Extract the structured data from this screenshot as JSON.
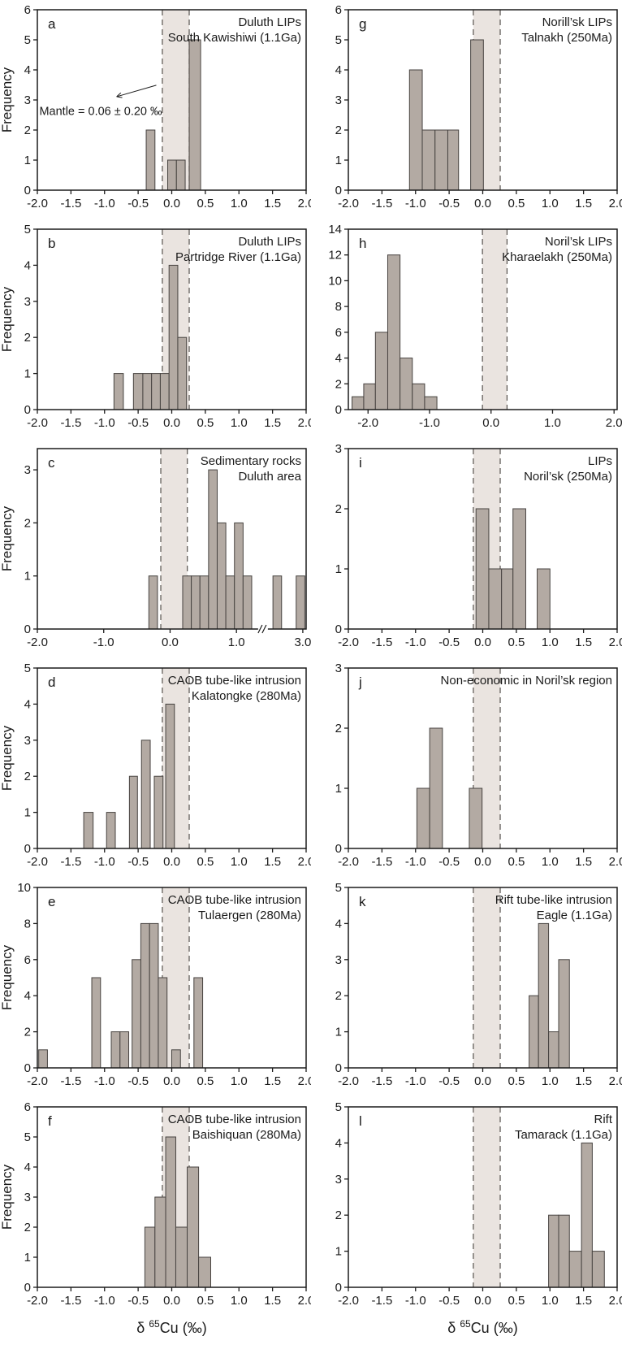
{
  "figure": {
    "ylabel": "Frequency",
    "xlabel_prefix": "δ ",
    "xlabel_sup": "65",
    "xlabel_suffix": "Cu (‰)",
    "mantle_band": [
      -0.14,
      0.26
    ],
    "colors": {
      "bar_fill": "#b3aaa3",
      "bar_stroke": "#474340",
      "band_fill": "#eae4e0",
      "dash_color": "#56514d",
      "axis_color": "#1c1c1c",
      "text_color": "#1a1a1a"
    }
  },
  "chart_data": [
    {
      "id": "a",
      "type": "bar",
      "letter": "a",
      "title_lines": [
        "Duluth LIPs",
        "South Kawishiwi (1.1Ga)"
      ],
      "xlim": [
        -2,
        2
      ],
      "xtick_vals": [
        -2,
        -1.5,
        -1,
        -0.5,
        0,
        0.5,
        1,
        1.5,
        2
      ],
      "xtick_labels": [
        "-2.0",
        "-1.5",
        "-1.0",
        "-0.5",
        "0.0",
        "0.5",
        "1.0",
        "1.5",
        "2.0"
      ],
      "ymax": 6,
      "yticks": [
        0,
        1,
        2,
        3,
        4,
        5,
        6
      ],
      "bars": [
        [
          -0.38,
          -0.25,
          2
        ],
        [
          -0.06,
          0.07,
          1
        ],
        [
          0.07,
          0.2,
          1
        ],
        [
          0.26,
          0.43,
          5
        ]
      ],
      "show_ylabel": true,
      "show_xlabel": false,
      "annotation": {
        "text": "Mantle = 0.06 ± 0.20 ‰",
        "text_x": -1.97,
        "text_y": 2.5,
        "arrow_from": [
          -0.23,
          3.49
        ],
        "arrow_to": [
          -0.82,
          3.11
        ]
      }
    },
    {
      "id": "b",
      "type": "bar",
      "letter": "b",
      "title_lines": [
        "Duluth LIPs",
        "Partridge River (1.1Ga)"
      ],
      "xlim": [
        -2,
        2
      ],
      "xtick_vals": [
        -2,
        -1.5,
        -1,
        -0.5,
        0,
        0.5,
        1,
        1.5,
        2
      ],
      "xtick_labels": [
        "-2.0",
        "-1.5",
        "-1.0",
        "-0.5",
        "0.0",
        "0.5",
        "1.0",
        "1.5",
        "2.0"
      ],
      "ymax": 5,
      "yticks": [
        0,
        1,
        2,
        3,
        4,
        5
      ],
      "bars": [
        [
          -0.86,
          -0.72,
          1
        ],
        [
          -0.57,
          -0.43,
          1
        ],
        [
          -0.43,
          -0.3,
          1
        ],
        [
          -0.3,
          -0.17,
          1
        ],
        [
          -0.17,
          -0.04,
          1
        ],
        [
          -0.04,
          0.09,
          4
        ],
        [
          0.09,
          0.22,
          2
        ]
      ],
      "show_ylabel": true,
      "show_xlabel": false
    },
    {
      "id": "c",
      "type": "bar",
      "letter": "c",
      "title_lines": [
        "Sedimentary rocks",
        "Duluth area"
      ],
      "xlim": [
        -2,
        3.05
      ],
      "xbreak": {
        "break_start": 1.35,
        "break_end": 2.45,
        "gap": 0.1
      },
      "xtick_vals": [
        -2,
        -1,
        0,
        1,
        3
      ],
      "xtick_labels": [
        "-2.0",
        "-1.0",
        "0.0",
        "1.0",
        "3.0"
      ],
      "ymax": 3.4,
      "yticks": [
        0,
        1,
        2,
        3
      ],
      "bars": [
        [
          -0.32,
          -0.19,
          1
        ],
        [
          0.19,
          0.32,
          1
        ],
        [
          0.32,
          0.45,
          1
        ],
        [
          0.45,
          0.58,
          1
        ],
        [
          0.58,
          0.71,
          3
        ],
        [
          0.71,
          0.84,
          2
        ],
        [
          0.84,
          0.97,
          1
        ],
        [
          0.97,
          1.1,
          2
        ],
        [
          1.1,
          1.23,
          1
        ],
        [
          2.55,
          2.68,
          1
        ],
        [
          2.9,
          3.03,
          1
        ]
      ],
      "show_ylabel": true,
      "show_xlabel": false
    },
    {
      "id": "d",
      "type": "bar",
      "letter": "d",
      "title_lines": [
        "CAOB tube-like intrusion",
        "Kalatongke (280Ma)"
      ],
      "xlim": [
        -2,
        2
      ],
      "xtick_vals": [
        -2,
        -1.5,
        -1,
        -0.5,
        0,
        0.5,
        1,
        1.5,
        2
      ],
      "xtick_labels": [
        "-2.0",
        "-1.5",
        "-1.0",
        "-0.5",
        "0.0",
        "0.5",
        "1.0",
        "1.5",
        "2.0"
      ],
      "ymax": 5,
      "yticks": [
        0,
        1,
        2,
        3,
        4,
        5
      ],
      "bars": [
        [
          -1.31,
          -1.17,
          1
        ],
        [
          -0.97,
          -0.84,
          1
        ],
        [
          -0.63,
          -0.51,
          2
        ],
        [
          -0.45,
          -0.32,
          3
        ],
        [
          -0.26,
          -0.13,
          2
        ],
        [
          -0.09,
          0.04,
          4
        ]
      ],
      "show_ylabel": true,
      "show_xlabel": false
    },
    {
      "id": "e",
      "type": "bar",
      "letter": "e",
      "title_lines": [
        "CAOB tube-like intrusion",
        "Tulaergen (280Ma)"
      ],
      "xlim": [
        -2,
        2
      ],
      "xtick_vals": [
        -2,
        -1.5,
        -1,
        -0.5,
        0,
        0.5,
        1,
        1.5,
        2
      ],
      "xtick_labels": [
        "-2.0",
        "-1.5",
        "-1.0",
        "-0.5",
        "0.0",
        "0.5",
        "1.0",
        "1.5",
        "2.0"
      ],
      "ymax": 10,
      "yticks": [
        0,
        2,
        4,
        6,
        8,
        10
      ],
      "bars": [
        [
          -1.98,
          -1.85,
          1
        ],
        [
          -1.19,
          -1.06,
          5
        ],
        [
          -0.9,
          -0.77,
          2
        ],
        [
          -0.77,
          -0.64,
          2
        ],
        [
          -0.59,
          -0.46,
          6
        ],
        [
          -0.46,
          -0.33,
          8
        ],
        [
          -0.33,
          -0.2,
          8
        ],
        [
          -0.2,
          -0.07,
          5
        ],
        [
          0.0,
          0.13,
          1
        ],
        [
          0.33,
          0.46,
          5
        ]
      ],
      "show_ylabel": true,
      "show_xlabel": false
    },
    {
      "id": "f",
      "type": "bar",
      "letter": "f",
      "title_lines": [
        "CAOB tube-like intrusion",
        "Baishiquan (280Ma)"
      ],
      "xlim": [
        -2,
        2
      ],
      "xtick_vals": [
        -2,
        -1.5,
        -1,
        -0.5,
        0,
        0.5,
        1,
        1.5,
        2
      ],
      "xtick_labels": [
        "-2.0",
        "-1.5",
        "-1.0",
        "-0.5",
        "0.0",
        "0.5",
        "1.0",
        "1.5",
        "2.0"
      ],
      "ymax": 6,
      "yticks": [
        0,
        1,
        2,
        3,
        4,
        5,
        6
      ],
      "bars": [
        [
          -0.4,
          -0.25,
          2
        ],
        [
          -0.25,
          -0.09,
          3
        ],
        [
          -0.09,
          0.06,
          5
        ],
        [
          0.06,
          0.23,
          2
        ],
        [
          0.23,
          0.4,
          4
        ],
        [
          0.4,
          0.58,
          1
        ]
      ],
      "show_ylabel": true,
      "show_xlabel": true
    },
    {
      "id": "g",
      "type": "bar",
      "letter": "g",
      "title_lines": [
        "Norill’sk LIPs",
        "Talnakh (250Ma)"
      ],
      "xlim": [
        -2,
        2
      ],
      "xtick_vals": [
        -2,
        -1.5,
        -1,
        -0.5,
        0,
        0.5,
        1,
        1.5,
        2
      ],
      "xtick_labels": [
        "-2.0",
        "-1.5",
        "-1.0",
        "-0.5",
        "0.0",
        "0.5",
        "1.0",
        "1.5",
        "2.0"
      ],
      "ymax": 6,
      "yticks": [
        0,
        1,
        2,
        3,
        4,
        5,
        6
      ],
      "bars": [
        [
          -1.09,
          -0.9,
          4
        ],
        [
          -0.9,
          -0.71,
          2
        ],
        [
          -0.71,
          -0.52,
          2
        ],
        [
          -0.52,
          -0.36,
          2
        ],
        [
          -0.18,
          0.01,
          5
        ]
      ],
      "show_ylabel": false,
      "show_xlabel": false
    },
    {
      "id": "h",
      "type": "bar",
      "letter": "h",
      "title_lines": [
        "Noril’sk LIPs",
        "Kharaelakh (250Ma)"
      ],
      "xlim": [
        -2.32,
        2.05
      ],
      "xtick_vals": [
        -2,
        -1,
        0,
        1,
        2
      ],
      "xtick_labels": [
        "-2.0",
        "-1.0",
        "0.0",
        "1.0",
        "2.0"
      ],
      "ymax": 14,
      "yticks": [
        0,
        2,
        4,
        6,
        8,
        10,
        12,
        14
      ],
      "bars": [
        [
          -2.26,
          -2.07,
          1
        ],
        [
          -2.07,
          -1.88,
          2
        ],
        [
          -1.88,
          -1.68,
          6
        ],
        [
          -1.68,
          -1.48,
          12
        ],
        [
          -1.48,
          -1.28,
          4
        ],
        [
          -1.28,
          -1.08,
          2
        ],
        [
          -1.08,
          -0.88,
          1
        ]
      ],
      "show_ylabel": false,
      "show_xlabel": false
    },
    {
      "id": "i",
      "type": "bar",
      "letter": "i",
      "title_lines": [
        "LIPs",
        "Noril’sk (250Ma)"
      ],
      "xlim": [
        -2,
        2
      ],
      "xtick_vals": [
        -2,
        -1.5,
        -1,
        -0.5,
        0,
        0.5,
        1,
        1.5,
        2
      ],
      "xtick_labels": [
        "-2.0",
        "-1.5",
        "-1.0",
        "-0.5",
        "0.0",
        "0.5",
        "1.0",
        "1.5",
        "2.0"
      ],
      "ymax": 3,
      "yticks": [
        0,
        1,
        2,
        3
      ],
      "bars": [
        [
          -0.1,
          0.09,
          2
        ],
        [
          0.09,
          0.28,
          1
        ],
        [
          0.28,
          0.45,
          1
        ],
        [
          0.45,
          0.64,
          2
        ],
        [
          0.81,
          1.0,
          1
        ]
      ],
      "show_ylabel": false,
      "show_xlabel": false
    },
    {
      "id": "j",
      "type": "bar",
      "letter": "j",
      "title_lines": [
        "Non-economic in Noril’sk region"
      ],
      "xlim": [
        -2,
        2
      ],
      "xtick_vals": [
        -2,
        -1.5,
        -1,
        -0.5,
        0,
        0.5,
        1,
        1.5,
        2
      ],
      "xtick_labels": [
        "-2.0",
        "-1.5",
        "-1.0",
        "-0.5",
        "0.0",
        "0.5",
        "1.0",
        "1.5",
        "2.0"
      ],
      "ymax": 3,
      "yticks": [
        0,
        1,
        2,
        3
      ],
      "bars": [
        [
          -0.98,
          -0.79,
          1
        ],
        [
          -0.79,
          -0.6,
          2
        ],
        [
          -0.2,
          -0.01,
          1
        ]
      ],
      "show_ylabel": false,
      "show_xlabel": false
    },
    {
      "id": "k",
      "type": "bar",
      "letter": "k",
      "title_lines": [
        "Rift tube-like intrusion",
        "Eagle (1.1Ga)"
      ],
      "xlim": [
        -2,
        2
      ],
      "xtick_vals": [
        -2,
        -1.5,
        -1,
        -0.5,
        0,
        0.5,
        1,
        1.5,
        2
      ],
      "xtick_labels": [
        "-2.0",
        "-1.5",
        "-1.0",
        "-0.5",
        "0.0",
        "0.5",
        "1.0",
        "1.5",
        "2.0"
      ],
      "ymax": 5,
      "yticks": [
        0,
        1,
        2,
        3,
        4,
        5
      ],
      "bars": [
        [
          0.69,
          0.83,
          2
        ],
        [
          0.83,
          0.98,
          4
        ],
        [
          0.98,
          1.13,
          1
        ],
        [
          1.13,
          1.29,
          3
        ]
      ],
      "show_ylabel": false,
      "show_xlabel": false
    },
    {
      "id": "l",
      "type": "bar",
      "letter": "l",
      "title_lines": [
        "Rift",
        "Tamarack (1.1Ga)"
      ],
      "xlim": [
        -2,
        2
      ],
      "xtick_vals": [
        -2,
        -1.5,
        -1,
        -0.5,
        0,
        0.5,
        1,
        1.5,
        2
      ],
      "xtick_labels": [
        "-2.0",
        "-1.5",
        "-1.0",
        "-0.5",
        "0.0",
        "0.5",
        "1.0",
        "1.5",
        "2.0"
      ],
      "ymax": 5,
      "yticks": [
        0,
        1,
        2,
        3,
        4,
        5
      ],
      "bars": [
        [
          0.98,
          1.13,
          2
        ],
        [
          1.13,
          1.29,
          2
        ],
        [
          1.29,
          1.47,
          1
        ],
        [
          1.47,
          1.63,
          4
        ],
        [
          1.63,
          1.81,
          1
        ]
      ],
      "show_ylabel": false,
      "show_xlabel": true
    }
  ]
}
